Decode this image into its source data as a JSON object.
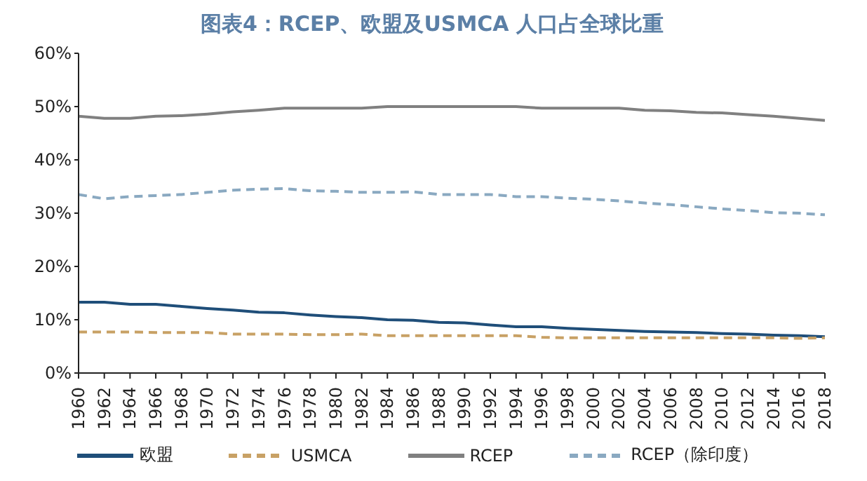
{
  "chart_data": {
    "type": "line",
    "title": "图表4：RCEP、欧盟及USMCA 人口占全球比重",
    "x": [
      1960,
      1962,
      1964,
      1966,
      1968,
      1970,
      1972,
      1974,
      1976,
      1978,
      1980,
      1982,
      1984,
      1986,
      1988,
      1990,
      1992,
      1994,
      1996,
      1998,
      2000,
      2002,
      2004,
      2006,
      2008,
      2010,
      2012,
      2014,
      2016,
      2018
    ],
    "series": [
      {
        "name": "欧盟",
        "color": "#1f4e79",
        "line_style": "solid",
        "values": [
          13.3,
          13.3,
          12.9,
          12.9,
          12.5,
          12.1,
          11.8,
          11.4,
          11.3,
          10.9,
          10.6,
          10.4,
          10.0,
          9.9,
          9.5,
          9.4,
          9.0,
          8.7,
          8.7,
          8.4,
          8.2,
          8.0,
          7.8,
          7.7,
          7.6,
          7.4,
          7.3,
          7.1,
          7.0,
          6.8
        ]
      },
      {
        "name": "USMCA",
        "color": "#c8a165",
        "line_style": "dashed",
        "values": [
          7.7,
          7.7,
          7.7,
          7.6,
          7.6,
          7.6,
          7.3,
          7.3,
          7.3,
          7.2,
          7.2,
          7.3,
          7.0,
          7.0,
          7.0,
          7.0,
          7.0,
          7.0,
          6.7,
          6.6,
          6.6,
          6.6,
          6.6,
          6.6,
          6.6,
          6.6,
          6.6,
          6.6,
          6.5,
          6.6
        ]
      },
      {
        "name": "RCEP",
        "color": "#808080",
        "line_style": "solid",
        "values": [
          48.2,
          47.8,
          47.8,
          48.2,
          48.3,
          48.6,
          49.0,
          49.3,
          49.7,
          49.7,
          49.7,
          49.7,
          50.0,
          50.0,
          50.0,
          50.0,
          50.0,
          50.0,
          49.7,
          49.7,
          49.7,
          49.7,
          49.3,
          49.2,
          48.9,
          48.8,
          48.5,
          48.2,
          47.8,
          47.4
        ]
      },
      {
        "name": "RCEP（除印度）",
        "color": "#8aa9c1",
        "line_style": "dashed",
        "values": [
          33.5,
          32.7,
          33.1,
          33.3,
          33.5,
          33.9,
          34.3,
          34.5,
          34.6,
          34.2,
          34.1,
          33.9,
          33.9,
          34.0,
          33.5,
          33.5,
          33.5,
          33.1,
          33.1,
          32.8,
          32.6,
          32.3,
          31.9,
          31.6,
          31.2,
          30.8,
          30.5,
          30.1,
          30.0,
          29.7
        ]
      }
    ],
    "xlim": [
      1960,
      2018
    ],
    "xticks": [
      1960,
      1962,
      1964,
      1966,
      1968,
      1970,
      1972,
      1974,
      1976,
      1978,
      1980,
      1982,
      1984,
      1986,
      1988,
      1990,
      1992,
      1994,
      1996,
      1998,
      2000,
      2002,
      2004,
      2006,
      2008,
      2010,
      2012,
      2014,
      2016,
      2018
    ],
    "ylim": [
      0,
      60
    ],
    "yticks": [
      {
        "value": 0,
        "label": "0%"
      },
      {
        "value": 10,
        "label": "10%"
      },
      {
        "value": 20,
        "label": "20%"
      },
      {
        "value": 30,
        "label": "30%"
      },
      {
        "value": 40,
        "label": "40%"
      },
      {
        "value": 50,
        "label": "50%"
      },
      {
        "value": 60,
        "label": "60%"
      }
    ],
    "grid": false,
    "legend": "bottom",
    "marker": "none"
  }
}
